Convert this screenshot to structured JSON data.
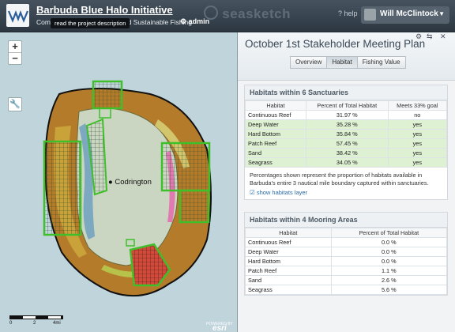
{
  "header": {
    "app_title": "Barbuda Blue Halo Initiative",
    "subtitle": "Comp",
    "subtitle_tail": "d Sustainable Fishing",
    "admin_label": "admin",
    "tooltip": "read the project description",
    "brand": "seasketch",
    "help_label": "help",
    "user_name": "Will McClintock"
  },
  "map": {
    "zoom_in": "+",
    "zoom_out": "−",
    "place_label": "Codrington",
    "scale_labels": [
      "0",
      "2",
      "4mi"
    ],
    "powered_by": "POWERED BY",
    "esri": "esri",
    "colors": {
      "ocean": "#c0d4dc",
      "land": "#c8d3c0",
      "halo": "#b07a26",
      "sanctuary": "#3fbf2a"
    }
  },
  "panel": {
    "title": "October 1st Stakeholder Meeting Plan",
    "tabs": [
      "Overview",
      "Habitat",
      "Fishing Value"
    ],
    "active_tab": "Habitat",
    "sanctuaries": {
      "heading": "Habitats within 6 Sanctuaries",
      "columns": [
        "Habitat",
        "Percent of Total Habitat",
        "Meets 33% goal"
      ],
      "rows": [
        [
          "Continuous Reef",
          "31.97 %",
          "no"
        ],
        [
          "Deep Water",
          "35.28 %",
          "yes"
        ],
        [
          "Hard Bottom",
          "35.84 %",
          "yes"
        ],
        [
          "Patch Reef",
          "57.45 %",
          "yes"
        ],
        [
          "Sand",
          "38.42 %",
          "yes"
        ],
        [
          "Seagrass",
          "34.05 %",
          "yes"
        ]
      ],
      "note": "Percentages shown represent the proportion of habitats available in Barbuda's entire 3 nautical mile boundary captured within sanctuaries.",
      "show_layer": "show habitats layer"
    },
    "moorings": {
      "heading": "Habitats within 4 Mooring Areas",
      "columns": [
        "Habitat",
        "Percent of Total Habitat"
      ],
      "rows": [
        [
          "Continuous Reef",
          "0.0 %"
        ],
        [
          "Deep Water",
          "0.0 %"
        ],
        [
          "Hard Bottom",
          "0.0 %"
        ],
        [
          "Patch Reef",
          "1.1 %"
        ],
        [
          "Sand",
          "2.6 %"
        ],
        [
          "Seagrass",
          "5.6 %"
        ]
      ]
    }
  }
}
